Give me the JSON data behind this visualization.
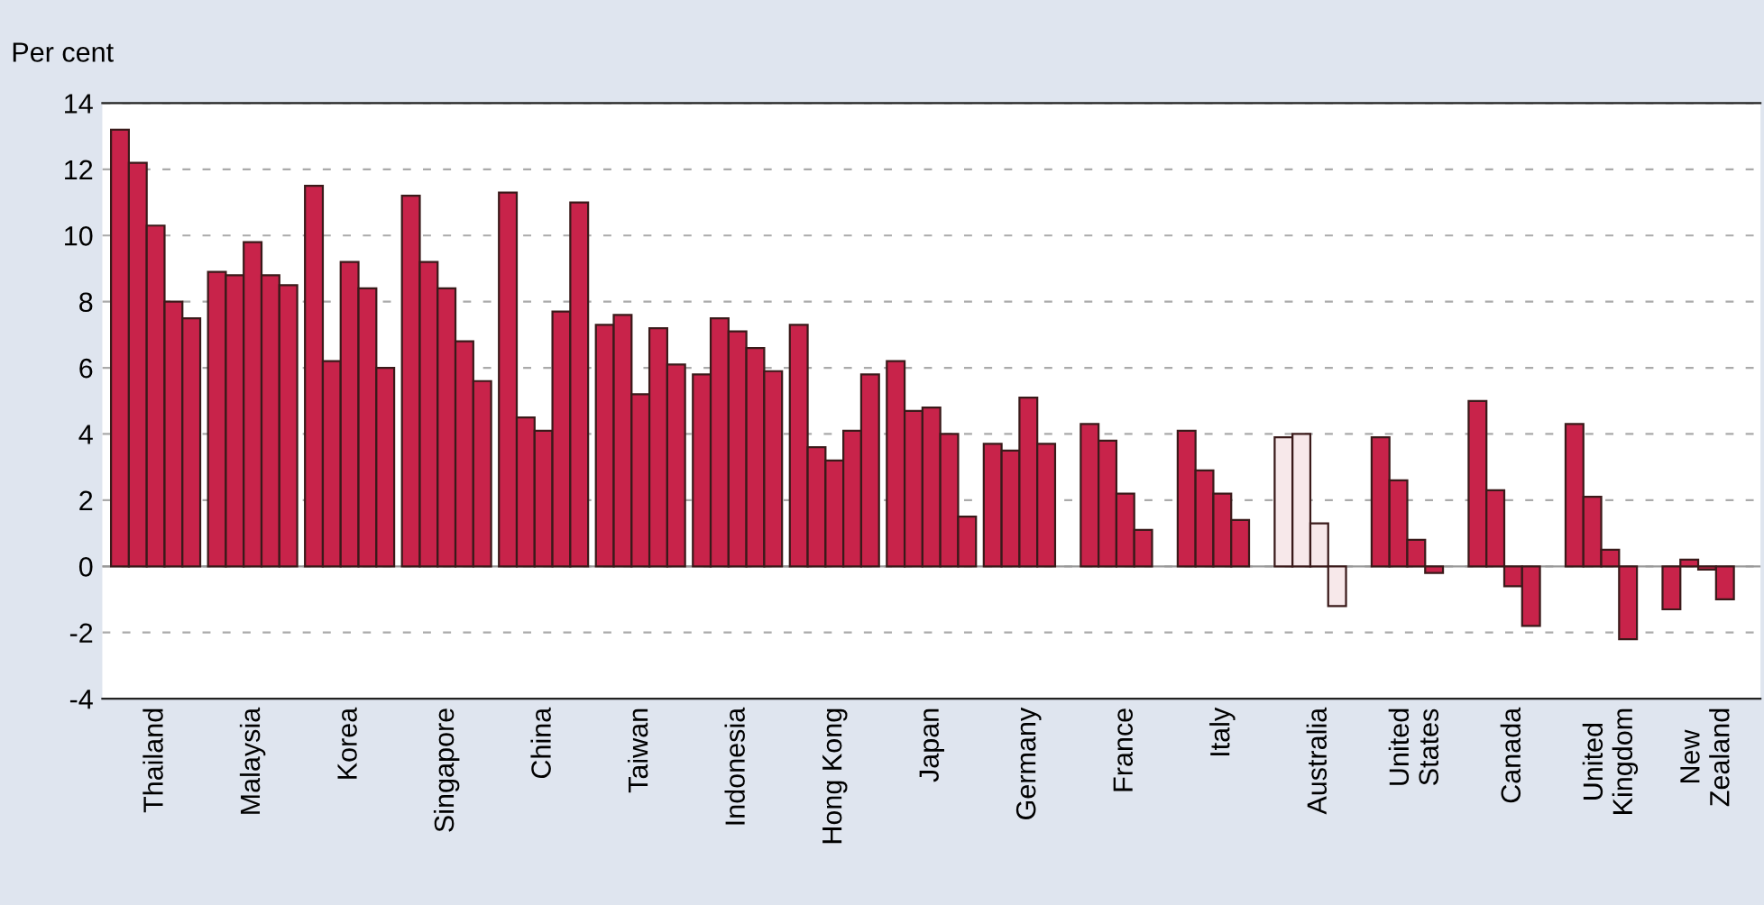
{
  "chart_data": {
    "type": "bar",
    "ylabel": "Per cent",
    "categories": [
      "Thailand",
      "Malaysia",
      "Korea",
      "Singapore",
      "China",
      "Taiwan",
      "Indonesia",
      "Hong Kong",
      "Japan",
      "Germany",
      "France",
      "Italy",
      "Australia",
      "United\nStates",
      "Canada",
      "United\nKingdom",
      "New\nZealand"
    ],
    "series": [
      {
        "colors": [
          "#c8234a",
          "#c8234a",
          "#c8234a",
          "#c8234a",
          "#c8234a",
          "#c8234a",
          "#c8234a",
          "#c8234a",
          "#c8234a",
          "#c8234a",
          "#c8234a",
          "#c8234a",
          "#f7e8ea",
          "#c8234a",
          "#c8234a",
          "#c8234a",
          "#c8234a"
        ],
        "values": [
          13.2,
          8.9,
          11.5,
          11.2,
          11.3,
          7.3,
          5.8,
          7.3,
          6.2,
          3.7,
          4.3,
          4.1,
          3.9,
          3.9,
          5.0,
          4.3,
          -1.3
        ]
      },
      {
        "colors": [
          "#c8234a",
          "#c8234a",
          "#c8234a",
          "#c8234a",
          "#c8234a",
          "#c8234a",
          "#c8234a",
          "#c8234a",
          "#c8234a",
          "#c8234a",
          "#c8234a",
          "#c8234a",
          "#f7e8ea",
          "#c8234a",
          "#c8234a",
          "#c8234a",
          "#c8234a"
        ],
        "values": [
          12.2,
          8.8,
          6.2,
          9.2,
          4.5,
          7.6,
          7.5,
          3.6,
          4.7,
          3.5,
          3.8,
          2.9,
          4.0,
          2.6,
          2.3,
          2.1,
          0.2
        ]
      },
      {
        "colors": [
          "#c8234a",
          "#c8234a",
          "#c8234a",
          "#c8234a",
          "#c8234a",
          "#c8234a",
          "#c8234a",
          "#c8234a",
          "#c8234a",
          "#c8234a",
          "#c8234a",
          "#c8234a",
          "#f7e8ea",
          "#c8234a",
          "#c8234a",
          "#c8234a",
          "#c8234a"
        ],
        "values": [
          10.3,
          9.8,
          9.2,
          8.4,
          4.1,
          5.2,
          7.1,
          3.2,
          4.8,
          5.1,
          2.2,
          2.2,
          1.3,
          0.8,
          -0.6,
          0.5,
          -0.1
        ]
      },
      {
        "colors": [
          "#c8234a",
          "#c8234a",
          "#c8234a",
          "#c8234a",
          "#c8234a",
          "#c8234a",
          "#c8234a",
          "#c8234a",
          "#c8234a",
          "#c8234a",
          "#c8234a",
          "#c8234a",
          "#f7e8ea",
          "#c8234a",
          "#c8234a",
          "#c8234a",
          "#c8234a"
        ],
        "values": [
          8.0,
          8.8,
          8.4,
          6.8,
          7.7,
          7.2,
          6.6,
          4.1,
          4.0,
          3.7,
          1.1,
          1.4,
          -1.2,
          -0.2,
          -1.8,
          -2.2,
          -1.0
        ]
      },
      {
        "color": "#c8234a",
        "values": [
          7.5,
          8.5,
          6.0,
          5.6,
          11.0,
          6.1,
          5.9,
          5.8,
          1.5,
          null,
          null,
          null,
          null,
          null,
          null,
          null,
          null
        ]
      }
    ],
    "ylim": [
      -4,
      14
    ],
    "yticks": [
      -4,
      -2,
      0,
      2,
      4,
      6,
      8,
      10,
      12,
      14
    ],
    "grid": "y",
    "legend": false
  }
}
